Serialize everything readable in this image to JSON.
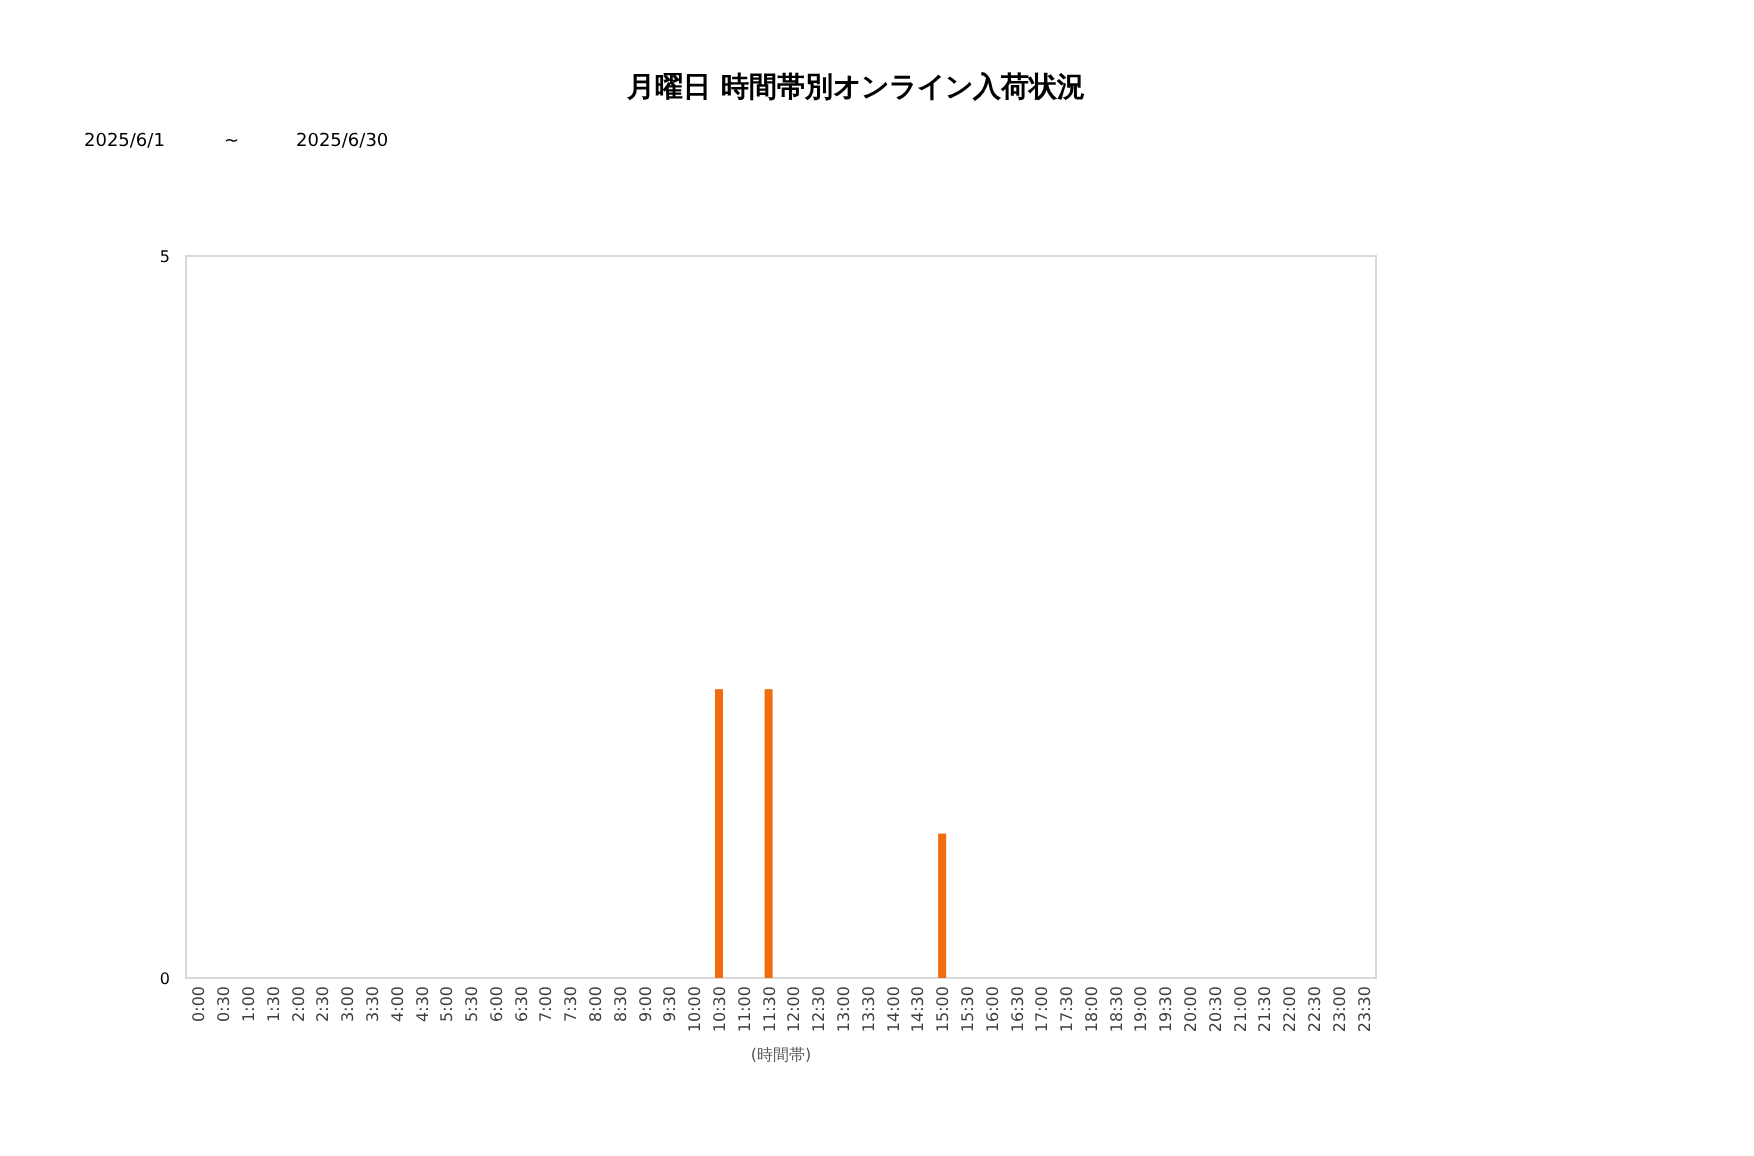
{
  "chart_data": {
    "type": "bar",
    "title": "月曜日 時間帯別オンライン入荷状況",
    "xlabel": "(時間帯)",
    "annotations": [
      "2025/6/1",
      "~",
      "2025/6/30"
    ],
    "categories": [
      "0:00",
      "0:30",
      "1:00",
      "1:30",
      "2:00",
      "2:30",
      "3:00",
      "3:30",
      "4:00",
      "4:30",
      "5:00",
      "5:30",
      "6:00",
      "6:30",
      "7:00",
      "7:30",
      "8:00",
      "8:30",
      "9:00",
      "9:30",
      "10:00",
      "10:30",
      "11:00",
      "11:30",
      "12:00",
      "12:30",
      "13:00",
      "13:30",
      "14:00",
      "14:30",
      "15:00",
      "15:30",
      "16:00",
      "16:30",
      "17:00",
      "17:30",
      "18:00",
      "18:30",
      "19:00",
      "19:30",
      "20:00",
      "20:30",
      "21:00",
      "21:30",
      "22:00",
      "22:30",
      "23:00",
      "23:30"
    ],
    "values": [
      0,
      0,
      0,
      0,
      0,
      0,
      0,
      0,
      0,
      0,
      0,
      0,
      0,
      0,
      0,
      0,
      0,
      0,
      0,
      0,
      0,
      2,
      0,
      2,
      0,
      0,
      0,
      0,
      0,
      0,
      1,
      0,
      0,
      0,
      0,
      0,
      0,
      0,
      0,
      0,
      0,
      0,
      0,
      0,
      0,
      0,
      0,
      0
    ],
    "color": "#f26b0f",
    "ylim": [
      0,
      5
    ],
    "yticks": [
      0,
      5
    ]
  }
}
